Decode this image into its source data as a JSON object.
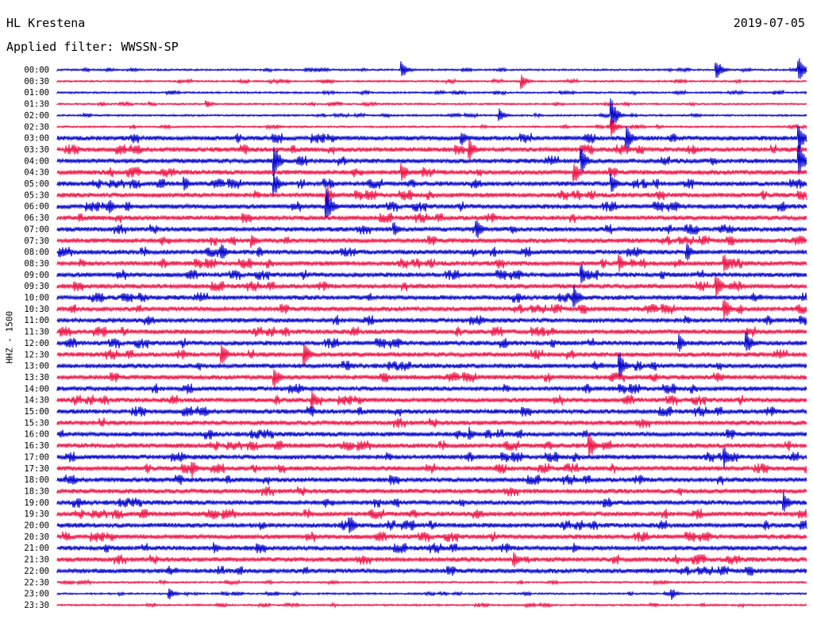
{
  "header": {
    "station": "HL Krestena",
    "date": "2019-07-05",
    "filter_label": "Applied filter: WWSSN-SP"
  },
  "axis": {
    "channel_label": "HHZ - 1500"
  },
  "colors": {
    "trace_even": "#0000cc",
    "trace_odd": "#ee1144",
    "background": "#ffffff"
  },
  "chart_data": {
    "type": "line",
    "title": "HL Krestena",
    "subtitle": "Applied filter: WWSSN-SP",
    "ylabel": "HHZ - 1500",
    "time_labels": [
      "00:00",
      "00:30",
      "01:00",
      "01:30",
      "02:00",
      "02:30",
      "03:00",
      "03:30",
      "04:00",
      "04:30",
      "05:00",
      "05:30",
      "06:00",
      "06:30",
      "07:00",
      "07:30",
      "08:00",
      "08:30",
      "09:00",
      "09:30",
      "10:00",
      "10:30",
      "11:00",
      "11:30",
      "12:00",
      "12:30",
      "13:00",
      "13:30",
      "14:00",
      "14:30",
      "15:00",
      "15:30",
      "16:00",
      "16:30",
      "17:00",
      "17:30",
      "18:00",
      "18:30",
      "19:00",
      "19:30",
      "20:00",
      "20:30",
      "21:00",
      "21:30",
      "22:00",
      "22:30",
      "23:00",
      "23:30"
    ],
    "series_colors": [
      "#0000cc",
      "#ee1144"
    ],
    "events": [
      {
        "row": 0,
        "pos": 0.46,
        "amp": 12
      },
      {
        "row": 0,
        "pos": 0.88,
        "amp": 14
      },
      {
        "row": 0,
        "pos": 0.99,
        "amp": 16
      },
      {
        "row": 1,
        "pos": 0.62,
        "amp": 10
      },
      {
        "row": 3,
        "pos": 0.2,
        "amp": 5
      },
      {
        "row": 4,
        "pos": 0.59,
        "amp": 9
      },
      {
        "row": 4,
        "pos": 0.74,
        "amp": 22
      },
      {
        "row": 5,
        "pos": 0.74,
        "amp": 12
      },
      {
        "row": 6,
        "pos": 0.54,
        "amp": 10
      },
      {
        "row": 6,
        "pos": 0.76,
        "amp": 18
      },
      {
        "row": 6,
        "pos": 0.99,
        "amp": 20
      },
      {
        "row": 7,
        "pos": 0.55,
        "amp": 16
      },
      {
        "row": 8,
        "pos": 0.29,
        "amp": 22
      },
      {
        "row": 8,
        "pos": 0.7,
        "amp": 18
      },
      {
        "row": 8,
        "pos": 0.99,
        "amp": 22
      },
      {
        "row": 9,
        "pos": 0.46,
        "amp": 14
      },
      {
        "row": 9,
        "pos": 0.69,
        "amp": 16
      },
      {
        "row": 10,
        "pos": 0.17,
        "amp": 10
      },
      {
        "row": 10,
        "pos": 0.29,
        "amp": 16
      },
      {
        "row": 10,
        "pos": 0.74,
        "amp": 14
      },
      {
        "row": 11,
        "pos": 0.36,
        "amp": 14
      },
      {
        "row": 12,
        "pos": 0.36,
        "amp": 22
      },
      {
        "row": 12,
        "pos": 0.07,
        "amp": 10
      },
      {
        "row": 14,
        "pos": 0.56,
        "amp": 14
      },
      {
        "row": 14,
        "pos": 0.45,
        "amp": 10
      },
      {
        "row": 15,
        "pos": 0.26,
        "amp": 10
      },
      {
        "row": 16,
        "pos": 0.22,
        "amp": 12
      },
      {
        "row": 16,
        "pos": 0.84,
        "amp": 14
      },
      {
        "row": 17,
        "pos": 0.75,
        "amp": 12
      },
      {
        "row": 17,
        "pos": 0.89,
        "amp": 16
      },
      {
        "row": 18,
        "pos": 0.7,
        "amp": 14
      },
      {
        "row": 19,
        "pos": 0.88,
        "amp": 18
      },
      {
        "row": 20,
        "pos": 0.69,
        "amp": 16
      },
      {
        "row": 21,
        "pos": 0.89,
        "amp": 16
      },
      {
        "row": 24,
        "pos": 0.83,
        "amp": 12
      },
      {
        "row": 24,
        "pos": 0.92,
        "amp": 16
      },
      {
        "row": 25,
        "pos": 0.22,
        "amp": 16
      },
      {
        "row": 25,
        "pos": 0.33,
        "amp": 16
      },
      {
        "row": 26,
        "pos": 0.75,
        "amp": 20
      },
      {
        "row": 27,
        "pos": 0.29,
        "amp": 14
      },
      {
        "row": 29,
        "pos": 0.34,
        "amp": 12
      },
      {
        "row": 32,
        "pos": 0.55,
        "amp": 10
      },
      {
        "row": 33,
        "pos": 0.71,
        "amp": 20
      },
      {
        "row": 34,
        "pos": 0.89,
        "amp": 14
      },
      {
        "row": 35,
        "pos": 0.18,
        "amp": 12
      },
      {
        "row": 38,
        "pos": 0.97,
        "amp": 14
      },
      {
        "row": 40,
        "pos": 0.39,
        "amp": 16
      },
      {
        "row": 42,
        "pos": 0.21,
        "amp": 8
      },
      {
        "row": 42,
        "pos": 0.69,
        "amp": 8
      },
      {
        "row": 43,
        "pos": 0.61,
        "amp": 10
      },
      {
        "row": 46,
        "pos": 0.15,
        "amp": 8
      },
      {
        "row": 46,
        "pos": 0.82,
        "amp": 8
      }
    ]
  }
}
